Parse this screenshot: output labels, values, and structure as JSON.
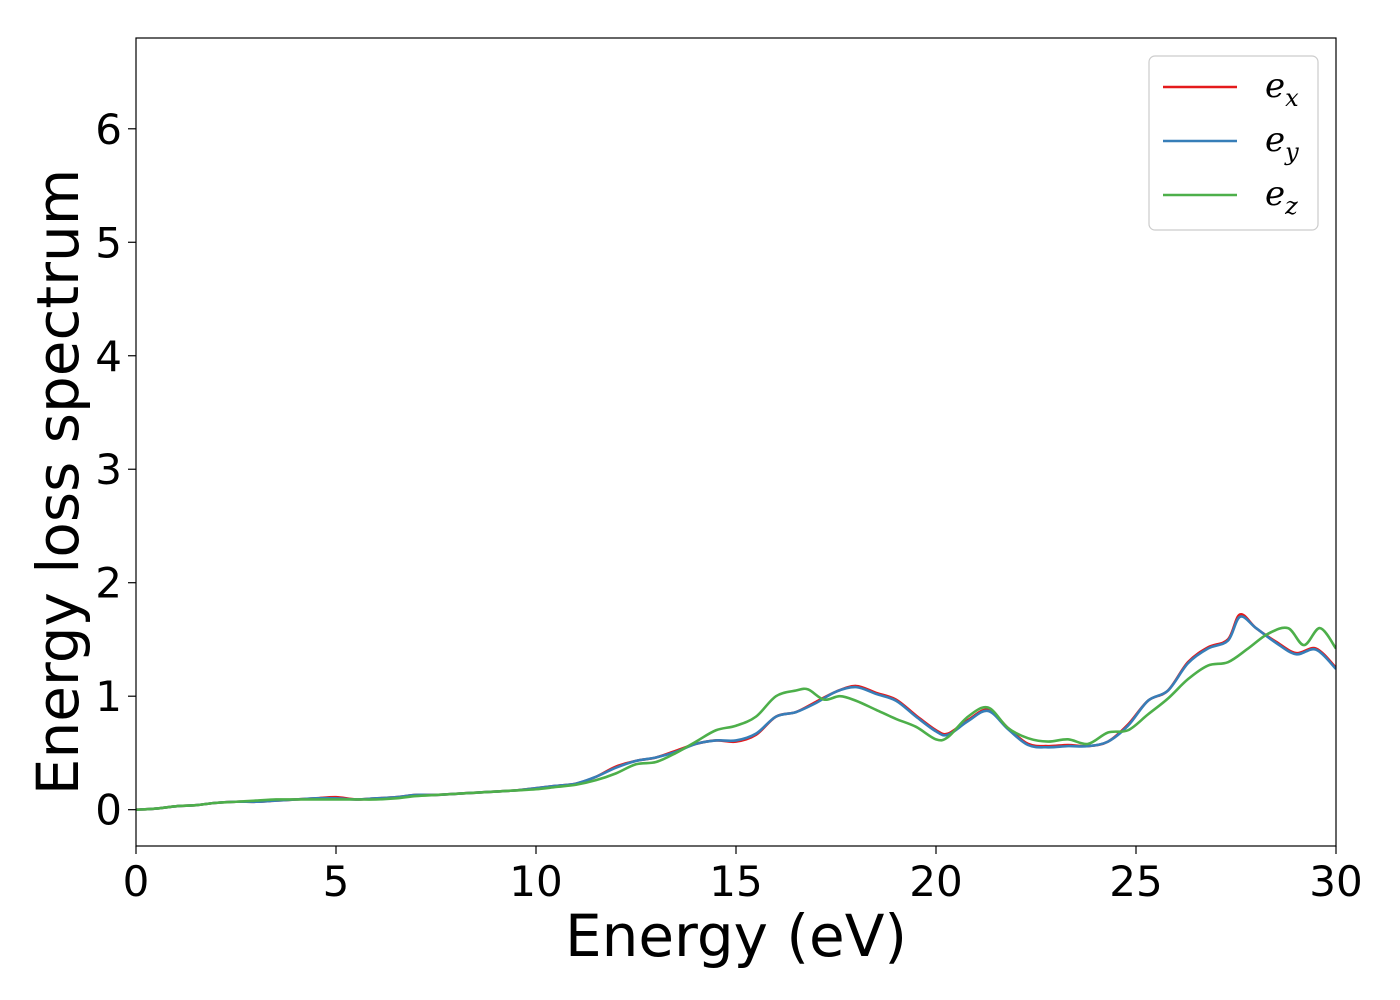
{
  "chart_data": {
    "type": "line",
    "title": "",
    "xlabel": "Energy (eV)",
    "ylabel": "Energy loss spectrum",
    "xlim": [
      0,
      30
    ],
    "ylim": [
      -0.32,
      6.8
    ],
    "xticks": [
      0,
      5,
      10,
      15,
      20,
      25,
      30
    ],
    "yticks": [
      0,
      1,
      2,
      3,
      4,
      5,
      6
    ],
    "x_tick_labels": [
      "0",
      "5",
      "10",
      "15",
      "20",
      "25",
      "30"
    ],
    "y_tick_labels": [
      "0",
      "1",
      "2",
      "3",
      "4",
      "5",
      "6"
    ],
    "grid": false,
    "legend_position": "top-right",
    "series": [
      {
        "name": "e_x",
        "label_base": "e",
        "label_sub": "x",
        "color": "#e41a1c",
        "x": [
          0,
          0.5,
          1,
          1.5,
          2,
          2.5,
          3,
          3.5,
          4,
          4.5,
          5,
          5.5,
          6,
          6.5,
          7,
          7.5,
          8,
          8.5,
          9,
          9.5,
          10,
          10.5,
          11,
          11.5,
          12,
          12.5,
          13,
          13.5,
          14,
          14.5,
          15,
          15.5,
          16,
          16.5,
          17,
          17.5,
          18,
          18.5,
          19,
          19.5,
          20,
          20.3,
          20.8,
          21.3,
          21.8,
          22.3,
          22.8,
          23.3,
          23.8,
          24.3,
          24.8,
          25.3,
          25.8,
          26.3,
          26.8,
          27.3,
          27.6,
          28,
          28.5,
          29,
          29.5,
          30
        ],
        "y": [
          0,
          0.01,
          0.03,
          0.04,
          0.06,
          0.07,
          0.07,
          0.08,
          0.09,
          0.1,
          0.11,
          0.09,
          0.1,
          0.11,
          0.13,
          0.13,
          0.14,
          0.15,
          0.16,
          0.17,
          0.19,
          0.21,
          0.23,
          0.29,
          0.38,
          0.43,
          0.46,
          0.52,
          0.58,
          0.61,
          0.6,
          0.66,
          0.82,
          0.86,
          0.95,
          1.04,
          1.09,
          1.03,
          0.97,
          0.83,
          0.7,
          0.67,
          0.79,
          0.88,
          0.72,
          0.58,
          0.56,
          0.57,
          0.56,
          0.6,
          0.75,
          0.96,
          1.05,
          1.3,
          1.43,
          1.5,
          1.72,
          1.6,
          1.48,
          1.38,
          1.42,
          1.25
        ]
      },
      {
        "name": "e_y",
        "label_base": "e",
        "label_sub": "y",
        "color": "#377eb8",
        "x": [
          0,
          0.5,
          1,
          1.5,
          2,
          2.5,
          3,
          3.5,
          4,
          4.5,
          5,
          5.5,
          6,
          6.5,
          7,
          7.5,
          8,
          8.5,
          9,
          9.5,
          10,
          10.5,
          11,
          11.5,
          12,
          12.5,
          13,
          13.5,
          14,
          14.5,
          15,
          15.5,
          16,
          16.5,
          17,
          17.5,
          18,
          18.5,
          19,
          19.5,
          20,
          20.3,
          20.8,
          21.3,
          21.8,
          22.3,
          22.8,
          23.3,
          23.8,
          24.3,
          24.8,
          25.3,
          25.8,
          26.3,
          26.8,
          27.3,
          27.6,
          28,
          28.5,
          29,
          29.5,
          30
        ],
        "y": [
          0,
          0.01,
          0.03,
          0.04,
          0.06,
          0.07,
          0.07,
          0.08,
          0.09,
          0.1,
          0.1,
          0.09,
          0.1,
          0.11,
          0.13,
          0.13,
          0.14,
          0.15,
          0.16,
          0.17,
          0.19,
          0.21,
          0.23,
          0.29,
          0.37,
          0.43,
          0.46,
          0.51,
          0.58,
          0.61,
          0.61,
          0.67,
          0.82,
          0.86,
          0.94,
          1.04,
          1.08,
          1.02,
          0.96,
          0.82,
          0.69,
          0.66,
          0.78,
          0.87,
          0.71,
          0.57,
          0.55,
          0.56,
          0.56,
          0.6,
          0.74,
          0.96,
          1.05,
          1.29,
          1.42,
          1.49,
          1.7,
          1.6,
          1.47,
          1.37,
          1.41,
          1.24
        ]
      },
      {
        "name": "e_z",
        "label_base": "e",
        "label_sub": "z",
        "color": "#4daf4a",
        "x": [
          0,
          0.5,
          1,
          1.5,
          2,
          2.5,
          3,
          3.5,
          4,
          4.5,
          5,
          5.5,
          6,
          6.5,
          7,
          7.5,
          8,
          8.5,
          9,
          9.5,
          10,
          10.5,
          11,
          11.5,
          12,
          12.5,
          13,
          13.5,
          14,
          14.5,
          15,
          15.5,
          16,
          16.5,
          16.8,
          17.2,
          17.6,
          18,
          18.5,
          19,
          19.5,
          20,
          20.3,
          20.8,
          21.3,
          21.8,
          22.3,
          22.8,
          23.3,
          23.8,
          24.3,
          24.8,
          25.3,
          25.8,
          26.3,
          26.8,
          27.3,
          27.8,
          28.3,
          28.8,
          29.2,
          29.6,
          30
        ],
        "y": [
          0,
          0.01,
          0.03,
          0.04,
          0.06,
          0.07,
          0.08,
          0.09,
          0.09,
          0.09,
          0.09,
          0.09,
          0.09,
          0.1,
          0.12,
          0.13,
          0.14,
          0.15,
          0.16,
          0.17,
          0.18,
          0.2,
          0.22,
          0.26,
          0.32,
          0.4,
          0.42,
          0.5,
          0.6,
          0.7,
          0.74,
          0.82,
          1.0,
          1.05,
          1.06,
          0.97,
          1.0,
          0.96,
          0.88,
          0.8,
          0.73,
          0.62,
          0.64,
          0.82,
          0.9,
          0.72,
          0.63,
          0.6,
          0.62,
          0.58,
          0.68,
          0.7,
          0.84,
          0.98,
          1.15,
          1.27,
          1.3,
          1.42,
          1.55,
          1.6,
          1.45,
          1.6,
          1.42
        ]
      }
    ]
  }
}
